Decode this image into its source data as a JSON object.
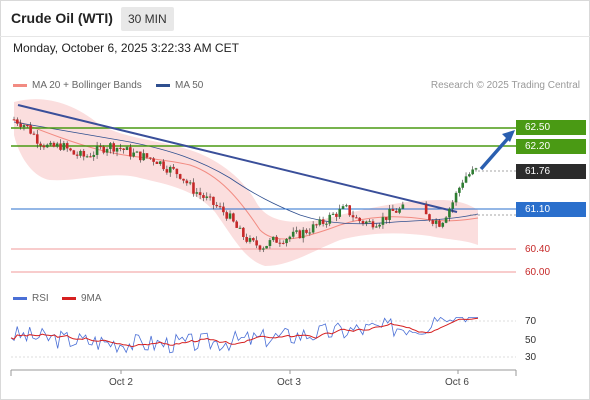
{
  "header": {
    "title": "Crude Oil (WTI)",
    "timeframe": "30 MIN",
    "datetime": "Monday, October 6, 2025 3:22:33 AM CET"
  },
  "legend": {
    "ma20_label": "MA 20 + Bollinger Bands",
    "ma50_label": "MA 50",
    "ma20_color": "#f28b82",
    "ma50_color": "#2f4f8f",
    "credit": "Research © 2025 Trading Central"
  },
  "price_levels": {
    "r2": "62.50",
    "r1": "62.20",
    "last": "61.76",
    "pivot": "61.10",
    "s1": "60.40",
    "s2": "60.00"
  },
  "rsi_legend": {
    "rsi_label": "RSI",
    "ma_label": "9MA",
    "rsi_color": "#4a6fd6",
    "ma_color": "#d62020"
  },
  "rsi_axis": [
    "70",
    "50",
    "30"
  ],
  "x_axis": [
    "Oct 2",
    "Oct 3",
    "Oct 6"
  ],
  "colors": {
    "resistance": "#4a9a14",
    "pivot": "#2a6fcc",
    "support": "#f29a9a",
    "trendline": "#3a4f9a",
    "last_badge": "#2b2b2b",
    "band_fill": "#fbdede",
    "candle_up": "#2e7d32",
    "candle_down": "#c62828"
  },
  "chart_data": {
    "type": "line",
    "title": "Crude Oil (WTI)",
    "timeframe": "30 MIN",
    "x_ticks": [
      "Oct 2",
      "Oct 3",
      "Oct 6"
    ],
    "price_levels": [
      62.5,
      62.2,
      61.76,
      61.1,
      60.4,
      60.0
    ],
    "last_price": 61.76,
    "series": [
      {
        "name": "MA 20 + Bollinger Bands"
      },
      {
        "name": "MA 50"
      }
    ],
    "price_path": [
      62.65,
      62.55,
      62.3,
      62.15,
      62.2,
      62.05,
      62.0,
      62.1,
      62.2,
      62.15,
      62.05,
      62.0,
      61.95,
      61.8,
      61.7,
      61.45,
      61.3,
      61.15,
      61.0,
      60.7,
      60.5,
      60.45,
      60.55,
      60.6,
      60.65,
      60.75,
      60.85,
      61.0,
      61.1,
      60.9,
      60.85,
      60.9,
      61.05,
      61.1,
      61.05,
      60.95,
      60.85,
      61.2,
      61.65,
      61.76
    ],
    "rsi": {
      "axis_ticks": [
        70,
        50,
        30
      ],
      "series": [
        {
          "name": "RSI"
        },
        {
          "name": "9MA"
        }
      ]
    }
  }
}
